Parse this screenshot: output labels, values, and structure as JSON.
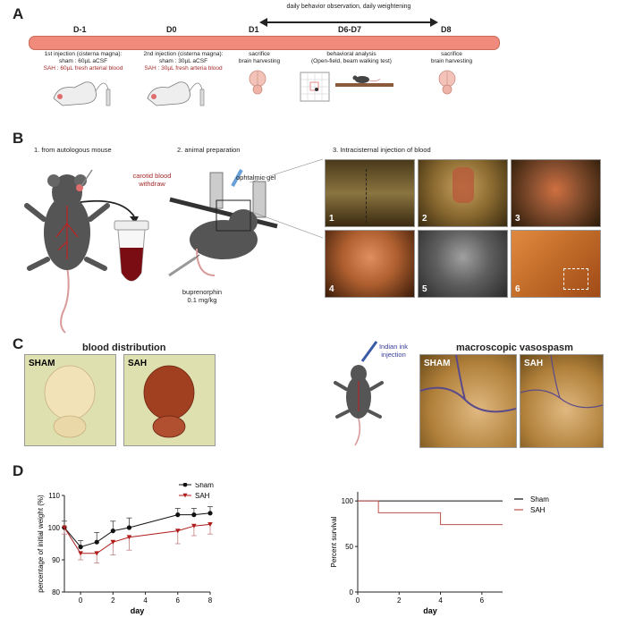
{
  "panelA": {
    "letter": "A",
    "arrow_label": "daily behavior observation,  daily weightening",
    "days": [
      "D-1",
      "D0",
      "D1",
      "D6-D7",
      "D8"
    ],
    "dm1_line1": "1st injection (cisterna magna):",
    "dm1_line2": "sham : 60µL aCSF",
    "dm1_line3": "SAH : 60µL fresh arterial blood",
    "d0_line1": "2nd injection (cisterna magna):",
    "d0_line2": "sham : 30µL aCSF",
    "d0_line3": "SAH : 30µL fresh arteria blood",
    "d1_line1": "sacrifice",
    "d1_line2": "brain harvesting",
    "d67_line1": "behavioral analysis",
    "d67_line2": "(Open-field, beam walking test)",
    "d8_line1": "sacrifice",
    "d8_line2": "brain harvesting"
  },
  "panelB": {
    "letter": "B",
    "step1": "1. from autologous mouse",
    "step2": "2. animal preparation",
    "step3": "3. Intracisternal injection of blood",
    "carotid_line1": "carotid blood",
    "carotid_line2": "withdraw",
    "gel": "ophtalmic gel",
    "bup_line1": "buprenorphin",
    "bup_line2": "0.1 mg/kg",
    "photo_numbers": [
      "1",
      "2",
      "3",
      "4",
      "5",
      "6"
    ]
  },
  "panelC": {
    "letter": "C",
    "blood_title": "blood distribution",
    "sham": "SHAM",
    "sah": "SAH",
    "ink_line1": "Indian ink",
    "ink_line2": "injection",
    "vaso_title": "macroscopic vasospasm"
  },
  "panelD": {
    "letter": "D",
    "weight_chart": {
      "type": "line",
      "xlabel": "day",
      "ylabel": "percentage of initial weight (%)",
      "ylim": [
        80,
        110
      ],
      "yticks": [
        80,
        90,
        100,
        110
      ],
      "xticks": [
        0,
        2,
        4,
        6,
        8
      ],
      "xlim": [
        -1,
        8
      ],
      "legend": "top-right",
      "series": [
        {
          "name": "Sham",
          "color": "#111111",
          "x": [
            -1,
            0,
            1,
            2,
            3,
            6,
            7,
            8
          ],
          "y": [
            100,
            94,
            95.5,
            99,
            100,
            104,
            104,
            104.5
          ],
          "err": [
            2,
            2,
            3,
            3,
            3,
            2,
            2,
            2
          ]
        },
        {
          "name": "SAH",
          "color": "#b01c1c",
          "x": [
            -1,
            0,
            1,
            2,
            3,
            6,
            7,
            8
          ],
          "y": [
            100,
            92,
            92,
            95.5,
            97,
            99,
            100.5,
            101
          ],
          "err": [
            2,
            2,
            3,
            4,
            4,
            4,
            3,
            3
          ]
        }
      ]
    },
    "survival_chart": {
      "type": "line",
      "xlabel": "day",
      "ylabel": "Percent survival",
      "ylim": [
        0,
        110
      ],
      "yticks": [
        0,
        50,
        100
      ],
      "xticks": [
        0,
        2,
        4,
        6
      ],
      "xlim": [
        0,
        7
      ],
      "legend": "top-right",
      "series": [
        {
          "name": "Sham",
          "color": "#111111",
          "x": [
            0,
            7
          ],
          "y": [
            100,
            100
          ]
        },
        {
          "name": "SAH",
          "color": "#c0504d",
          "x": [
            0,
            1,
            1,
            4,
            4,
            7
          ],
          "y": [
            100,
            100,
            87,
            87,
            74,
            74
          ]
        }
      ]
    }
  }
}
